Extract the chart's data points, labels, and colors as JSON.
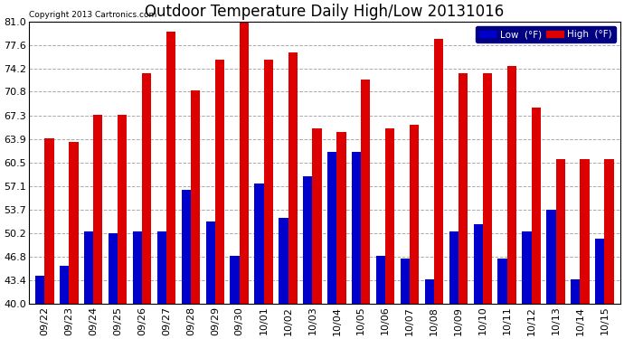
{
  "title": "Outdoor Temperature Daily High/Low 20131016",
  "copyright": "Copyright 2013 Cartronics.com",
  "legend_low": "Low  (°F)",
  "legend_high": "High  (°F)",
  "low_color": "#0000CC",
  "high_color": "#DD0000",
  "background_color": "#FFFFFF",
  "plot_bg_color": "#FFFFFF",
  "categories": [
    "09/22",
    "09/23",
    "09/24",
    "09/25",
    "09/26",
    "09/27",
    "09/28",
    "09/29",
    "09/30",
    "10/01",
    "10/02",
    "10/03",
    "10/04",
    "10/05",
    "10/06",
    "10/07",
    "10/08",
    "10/09",
    "10/10",
    "10/11",
    "10/12",
    "10/13",
    "10/14",
    "10/15"
  ],
  "high_values": [
    64.0,
    63.5,
    67.5,
    67.5,
    73.5,
    79.5,
    71.0,
    75.5,
    81.0,
    75.5,
    76.5,
    65.5,
    65.0,
    72.5,
    65.5,
    66.0,
    78.5,
    73.5,
    73.5,
    74.5,
    68.5,
    61.0,
    61.0,
    61.0
  ],
  "low_values": [
    44.0,
    45.5,
    50.5,
    50.2,
    50.5,
    50.5,
    56.5,
    52.0,
    47.0,
    57.5,
    52.5,
    58.5,
    62.0,
    62.0,
    47.0,
    46.5,
    43.5,
    50.5,
    51.5,
    46.5,
    50.5,
    53.7,
    43.5,
    49.5
  ],
  "ylim": [
    40.0,
    81.0
  ],
  "yticks": [
    40.0,
    43.4,
    46.8,
    50.2,
    53.7,
    57.1,
    60.5,
    63.9,
    67.3,
    70.8,
    74.2,
    77.6,
    81.0
  ],
  "yticklabels": [
    "40.0",
    "43.4",
    "46.8",
    "50.2",
    "53.7",
    "57.1",
    "60.5",
    "63.9",
    "67.3",
    "70.8",
    "74.2",
    "77.6",
    "81.0"
  ],
  "bar_width": 0.38,
  "title_fontsize": 12,
  "tick_fontsize": 8,
  "label_fontsize": 8,
  "grid_color": "#AAAAAA",
  "grid_style": "--",
  "legend_bg": "#000080",
  "legend_low_bg": "#0000CC",
  "legend_high_bg": "#DD0000"
}
